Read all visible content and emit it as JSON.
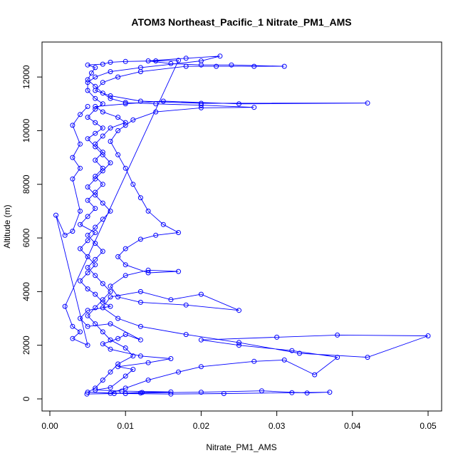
{
  "chart_data": {
    "type": "line",
    "title": "ATOM3 Northeast_Pacific_1 Nitrate_PM1_AMS",
    "xlabel": "Nitrate_PM1_AMS",
    "ylabel": "Altitude (m)",
    "xlim": [
      0.0,
      0.05
    ],
    "ylim": [
      0,
      12800
    ],
    "x_ticks": [
      "0.00",
      "0.01",
      "0.02",
      "0.03",
      "0.04",
      "0.05"
    ],
    "y_ticks": [
      "0",
      "2000",
      "4000",
      "6000",
      "8000",
      "10000",
      "12000"
    ],
    "grid": false,
    "style": {
      "line_color": "#0000ff",
      "marker": "open-circle"
    },
    "series": [
      {
        "values_xy": [
          [
            0.0049,
            180
          ],
          [
            0.0085,
            200
          ],
          [
            0.0122,
            240
          ],
          [
            0.016,
            260
          ],
          [
            0.0095,
            290
          ],
          [
            0.006,
            330
          ],
          [
            0.008,
            420
          ],
          [
            0.01,
            850
          ],
          [
            0.011,
            1100
          ],
          [
            0.009,
            1200
          ],
          [
            0.013,
            1350
          ],
          [
            0.016,
            1500
          ],
          [
            0.012,
            1600
          ],
          [
            0.008,
            1850
          ],
          [
            0.007,
            2050
          ],
          [
            0.009,
            2250
          ],
          [
            0.01,
            2400
          ],
          [
            0.012,
            2200
          ],
          [
            0.008,
            2800
          ],
          [
            0.005,
            2700
          ],
          [
            0.004,
            3000
          ],
          [
            0.005,
            3300
          ],
          [
            0.008,
            3450
          ],
          [
            0.007,
            3600
          ],
          [
            0.006,
            3900
          ],
          [
            0.005,
            4100
          ],
          [
            0.004,
            4400
          ],
          [
            0.005,
            4700
          ],
          [
            0.006,
            5000
          ],
          [
            0.005,
            5300
          ],
          [
            0.004,
            5600
          ],
          [
            0.005,
            5900
          ],
          [
            0.006,
            6200
          ],
          [
            0.004,
            6500
          ],
          [
            0.005,
            6800
          ],
          [
            0.006,
            7100
          ],
          [
            0.005,
            7400
          ],
          [
            0.006,
            7700
          ],
          [
            0.007,
            8000
          ],
          [
            0.006,
            8300
          ],
          [
            0.007,
            8600
          ],
          [
            0.006,
            8900
          ],
          [
            0.007,
            9200
          ],
          [
            0.006,
            9500
          ],
          [
            0.007,
            9800
          ],
          [
            0.008,
            10100
          ],
          [
            0.01,
            10300
          ],
          [
            0.009,
            10500
          ],
          [
            0.007,
            10700
          ],
          [
            0.006,
            10900
          ],
          [
            0.01,
            11000
          ],
          [
            0.015,
            11100
          ],
          [
            0.025,
            11000
          ],
          [
            0.042,
            11030
          ],
          [
            0.02,
            11020
          ],
          [
            0.012,
            11100
          ],
          [
            0.008,
            11300
          ],
          [
            0.006,
            11500
          ],
          [
            0.007,
            11800
          ],
          [
            0.009,
            12000
          ],
          [
            0.012,
            12200
          ],
          [
            0.018,
            12400
          ],
          [
            0.022,
            12400
          ],
          [
            0.027,
            12400
          ],
          [
            0.031,
            12400
          ],
          [
            0.024,
            12450
          ],
          [
            0.02,
            12450
          ],
          [
            0.016,
            12500
          ],
          [
            0.013,
            12600
          ],
          [
            0.018,
            12700
          ],
          [
            0.0225,
            12780
          ],
          [
            0.02,
            12600
          ],
          [
            0.012,
            12350
          ],
          [
            0.008,
            12200
          ],
          [
            0.006,
            12000
          ],
          [
            0.005,
            11800
          ],
          [
            0.005,
            11500
          ],
          [
            0.006,
            11200
          ],
          [
            0.007,
            11000
          ],
          [
            0.006,
            10800
          ],
          [
            0.005,
            10500
          ],
          [
            0.006,
            10300
          ],
          [
            0.007,
            10100
          ],
          [
            0.006,
            9900
          ],
          [
            0.005,
            9700
          ],
          [
            0.006,
            9400
          ],
          [
            0.007,
            9100
          ],
          [
            0.008,
            8800
          ],
          [
            0.007,
            8500
          ],
          [
            0.006,
            8200
          ],
          [
            0.005,
            7900
          ],
          [
            0.006,
            7600
          ],
          [
            0.007,
            7300
          ],
          [
            0.008,
            7000
          ],
          [
            0.007,
            6700
          ],
          [
            0.006,
            6400
          ],
          [
            0.005,
            6100
          ],
          [
            0.006,
            5800
          ],
          [
            0.007,
            5500
          ],
          [
            0.006,
            5200
          ],
          [
            0.005,
            4900
          ],
          [
            0.006,
            4600
          ],
          [
            0.007,
            4300
          ],
          [
            0.008,
            4000
          ],
          [
            0.007,
            3700
          ],
          [
            0.006,
            3400
          ],
          [
            0.005,
            3100
          ],
          [
            0.006,
            2800
          ],
          [
            0.007,
            2500
          ],
          [
            0.008,
            2200
          ],
          [
            0.01,
            1900
          ],
          [
            0.011,
            1600
          ],
          [
            0.009,
            1300
          ],
          [
            0.008,
            1000
          ],
          [
            0.007,
            700
          ],
          [
            0.006,
            400
          ],
          [
            0.005,
            250
          ],
          [
            0.01,
            200
          ],
          [
            0.016,
            180
          ],
          [
            0.023,
            200
          ],
          [
            0.032,
            230
          ],
          [
            0.037,
            250
          ],
          [
            0.034,
            220
          ],
          [
            0.028,
            300
          ],
          [
            0.02,
            250
          ],
          [
            0.012,
            220
          ],
          [
            0.008,
            210
          ],
          [
            0.01,
            400
          ],
          [
            0.013,
            700
          ],
          [
            0.017,
            1000
          ],
          [
            0.02,
            1200
          ],
          [
            0.027,
            1400
          ],
          [
            0.031,
            1450
          ],
          [
            0.035,
            900
          ],
          [
            0.038,
            1550
          ],
          [
            0.032,
            1800
          ],
          [
            0.025,
            2000
          ],
          [
            0.02,
            2200
          ],
          [
            0.03,
            2300
          ],
          [
            0.038,
            2380
          ],
          [
            0.05,
            2350
          ],
          [
            0.042,
            1550
          ],
          [
            0.033,
            1700
          ],
          [
            0.025,
            2100
          ],
          [
            0.018,
            2400
          ],
          [
            0.012,
            2700
          ],
          [
            0.009,
            3000
          ],
          [
            0.007,
            3400
          ],
          [
            0.008,
            3800
          ],
          [
            0.012,
            4000
          ],
          [
            0.016,
            3700
          ],
          [
            0.02,
            3900
          ],
          [
            0.025,
            3300
          ],
          [
            0.018,
            3500
          ],
          [
            0.012,
            3600
          ],
          [
            0.009,
            3800
          ],
          [
            0.008,
            4200
          ],
          [
            0.01,
            4600
          ],
          [
            0.013,
            4800
          ],
          [
            0.017,
            4750
          ],
          [
            0.013,
            4700
          ],
          [
            0.01,
            5000
          ],
          [
            0.009,
            5300
          ],
          [
            0.01,
            5600
          ],
          [
            0.012,
            5950
          ],
          [
            0.014,
            6100
          ],
          [
            0.017,
            6200
          ],
          [
            0.015,
            6500
          ],
          [
            0.013,
            7000
          ],
          [
            0.012,
            7500
          ],
          [
            0.011,
            8000
          ],
          [
            0.01,
            8600
          ],
          [
            0.009,
            9100
          ],
          [
            0.008,
            9600
          ],
          [
            0.009,
            10000
          ],
          [
            0.01,
            10200
          ],
          [
            0.011,
            10400
          ],
          [
            0.014,
            10700
          ],
          [
            0.02,
            10850
          ],
          [
            0.027,
            10870
          ],
          [
            0.02,
            10950
          ],
          [
            0.014,
            11000
          ],
          [
            0.01,
            11050
          ],
          [
            0.008,
            11200
          ],
          [
            0.007,
            11400
          ],
          [
            0.006,
            11650
          ],
          [
            0.005,
            11900
          ],
          [
            0.0055,
            12150
          ],
          [
            0.006,
            12350
          ],
          [
            0.005,
            12450
          ],
          [
            0.007,
            12480
          ],
          [
            0.008,
            12550
          ],
          [
            0.01,
            12580
          ],
          [
            0.014,
            12600
          ],
          [
            0.017,
            12620
          ],
          [
            0.002,
            3450
          ],
          [
            0.003,
            2700
          ],
          [
            0.004,
            2500
          ],
          [
            0.003,
            2250
          ],
          [
            0.005,
            2000
          ],
          [
            0.0008,
            6850
          ],
          [
            0.002,
            6100
          ],
          [
            0.003,
            6250
          ],
          [
            0.004,
            7000
          ],
          [
            0.003,
            8200
          ],
          [
            0.004,
            8600
          ],
          [
            0.003,
            9000
          ],
          [
            0.004,
            9500
          ],
          [
            0.003,
            10200
          ],
          [
            0.004,
            10600
          ],
          [
            0.005,
            10900
          ]
        ]
      }
    ]
  }
}
